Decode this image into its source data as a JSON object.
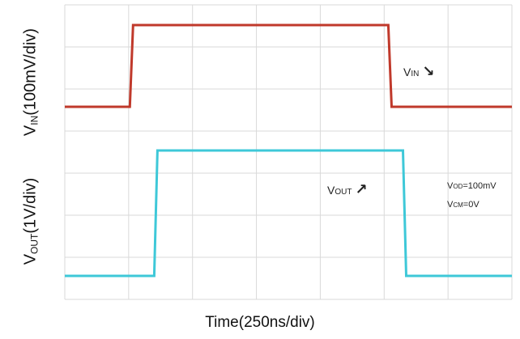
{
  "chart_data": {
    "type": "line",
    "xlabel": "Time(250ns/div)",
    "ylabels": {
      "vin": {
        "main": "V",
        "sub": "IN",
        "rest": "(100mV/div)"
      },
      "vout": {
        "main": "V",
        "sub": "OUT",
        "rest": "(1V/div)"
      }
    },
    "x_divisions": 7,
    "series": [
      {
        "name": "VIN",
        "label_main": "V",
        "label_sub": "IN",
        "arrow": "↘",
        "color": "#c0392b",
        "x_ns": [
          0,
          400,
          420,
          1990,
          2010,
          2750
        ],
        "level": [
          0,
          0,
          1,
          1,
          0,
          0
        ]
      },
      {
        "name": "VOUT",
        "label_main": "V",
        "label_sub": "OUT",
        "arrow": "↗",
        "color": "#3ec8d8",
        "x_ns": [
          0,
          550,
          570,
          2080,
          2100,
          2750
        ],
        "level": [
          0,
          0,
          1,
          1,
          0,
          0
        ]
      }
    ],
    "annotations": [
      {
        "main": "V",
        "sub": "OD",
        "rest": "=100mV"
      },
      {
        "main": "V",
        "sub": "CM",
        "rest": "=0V"
      }
    ],
    "grid": true
  }
}
